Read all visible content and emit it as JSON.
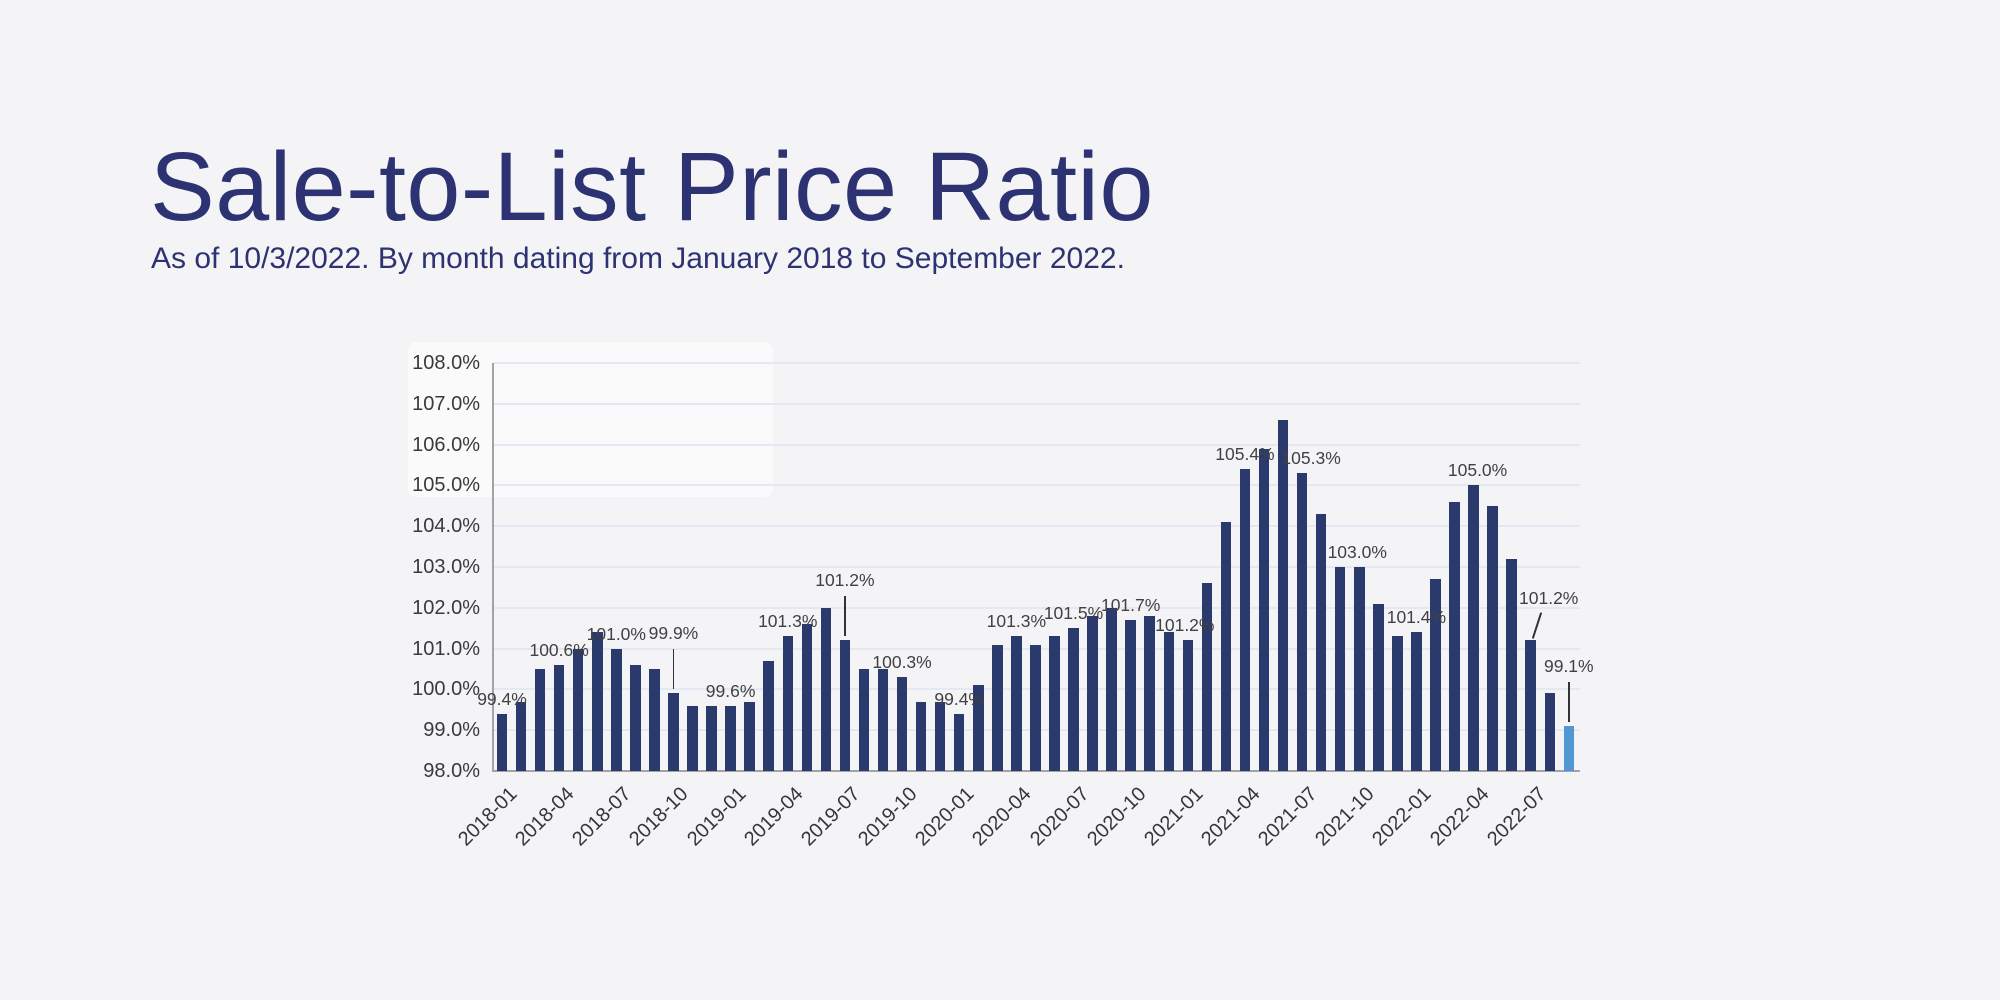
{
  "header": {
    "title": "Sale-to-List Price Ratio",
    "subtitle": "As of 10/3/2022. By month dating from January 2018 to September 2022."
  },
  "colors": {
    "title_text": "#2d3272",
    "bar": "#2b3a6c",
    "bar_highlight": "#5197d3",
    "gridline": "#e4e8f3",
    "axis_line": "#a3a3a7",
    "tick_text": "#3a3a3c",
    "data_label_text": "#414143",
    "page_background": "#f4f4f6",
    "leader_line": "#333336"
  },
  "chart_data": {
    "type": "bar",
    "title": "Sale-to-List Price Ratio",
    "subtitle": "As of 10/3/2022. By month dating from January 2018 to September 2022.",
    "xlabel": "",
    "ylabel": "",
    "ylim": [
      98,
      108
    ],
    "ytick_step": 1.0,
    "grid": true,
    "legend": "none",
    "y_tick_labels": [
      "98.0%",
      "99.0%",
      "100.0%",
      "101.0%",
      "102.0%",
      "103.0%",
      "104.0%",
      "105.0%",
      "106.0%",
      "107.0%",
      "108.0%"
    ],
    "x_tick_labels": [
      "2018-01",
      "2018-04",
      "2018-07",
      "2018-10",
      "2019-01",
      "2019-04",
      "2019-07",
      "2019-10",
      "2020-01",
      "2020-04",
      "2020-07",
      "2020-10",
      "2021-01",
      "2021-04",
      "2021-07",
      "2021-10",
      "2022-01",
      "2022-04",
      "2022-07"
    ],
    "x_ticks_every": 3,
    "categories": [
      "2018-01",
      "2018-02",
      "2018-03",
      "2018-04",
      "2018-05",
      "2018-06",
      "2018-07",
      "2018-08",
      "2018-09",
      "2018-10",
      "2018-11",
      "2018-12",
      "2019-01",
      "2019-02",
      "2019-03",
      "2019-04",
      "2019-05",
      "2019-06",
      "2019-07",
      "2019-08",
      "2019-09",
      "2019-10",
      "2019-11",
      "2019-12",
      "2020-01",
      "2020-02",
      "2020-03",
      "2020-04",
      "2020-05",
      "2020-06",
      "2020-07",
      "2020-08",
      "2020-09",
      "2020-10",
      "2020-11",
      "2020-12",
      "2021-01",
      "2021-02",
      "2021-03",
      "2021-04",
      "2021-05",
      "2021-06",
      "2021-07",
      "2021-08",
      "2021-09",
      "2021-10",
      "2021-11",
      "2021-12",
      "2022-01",
      "2022-02",
      "2022-03",
      "2022-04",
      "2022-05",
      "2022-06",
      "2022-07",
      "2022-08",
      "2022-09"
    ],
    "values": [
      99.4,
      99.7,
      100.5,
      100.6,
      101.0,
      101.4,
      101.0,
      100.6,
      100.5,
      99.9,
      99.6,
      99.6,
      99.6,
      99.7,
      100.7,
      101.3,
      101.6,
      102.0,
      101.2,
      100.5,
      100.5,
      100.3,
      99.7,
      99.7,
      99.4,
      100.1,
      101.1,
      101.3,
      101.1,
      101.3,
      101.5,
      101.8,
      102.0,
      101.7,
      101.8,
      101.4,
      101.2,
      102.6,
      104.1,
      105.4,
      105.9,
      106.6,
      105.3,
      104.3,
      103.0,
      103.0,
      102.1,
      101.3,
      101.4,
      102.7,
      104.6,
      105.0,
      104.5,
      103.2,
      101.2,
      99.9,
      99.1
    ],
    "highlight_last_bar": true,
    "annotations": [
      {
        "category": "2018-01",
        "label": "99.4%",
        "leader": "none",
        "dx": 0
      },
      {
        "category": "2018-04",
        "label": "100.6%",
        "leader": "none",
        "dx": 0
      },
      {
        "category": "2018-07",
        "label": "101.0%",
        "leader": "none",
        "dx": 0
      },
      {
        "category": "2018-10",
        "label": "99.9%",
        "leader": "vertical",
        "dx": 0
      },
      {
        "category": "2019-01",
        "label": "99.6%",
        "leader": "none",
        "dx": 0
      },
      {
        "category": "2019-04",
        "label": "101.3%",
        "leader": "none",
        "dx": 0
      },
      {
        "category": "2019-07",
        "label": "101.2%",
        "leader": "vertical",
        "dx": 0
      },
      {
        "category": "2019-10",
        "label": "100.3%",
        "leader": "none",
        "dx": 0
      },
      {
        "category": "2020-01",
        "label": "99.4%",
        "leader": "none",
        "dx": 0
      },
      {
        "category": "2020-04",
        "label": "101.3%",
        "leader": "none",
        "dx": 0
      },
      {
        "category": "2020-07",
        "label": "101.5%",
        "leader": "none",
        "dx": 0
      },
      {
        "category": "2020-10",
        "label": "101.7%",
        "leader": "none",
        "dx": 0
      },
      {
        "category": "2021-01",
        "label": "101.2%",
        "leader": "none",
        "dx": -3
      },
      {
        "category": "2021-04",
        "label": "105.4%",
        "leader": "none",
        "dx": 0
      },
      {
        "category": "2021-07",
        "label": "105.3%",
        "leader": "none",
        "dx": 9
      },
      {
        "category": "2021-10",
        "label": "103.0%",
        "leader": "none",
        "dx": -2
      },
      {
        "category": "2022-01",
        "label": "101.4%",
        "leader": "none",
        "dx": 0
      },
      {
        "category": "2022-04",
        "label": "105.0%",
        "leader": "none",
        "dx": 4
      },
      {
        "category": "2022-07",
        "label": "101.2%",
        "leader": "diagonal",
        "dx": 18
      },
      {
        "category": "2022-09",
        "label": "99.1%",
        "leader": "vertical",
        "dx": 0
      }
    ]
  }
}
